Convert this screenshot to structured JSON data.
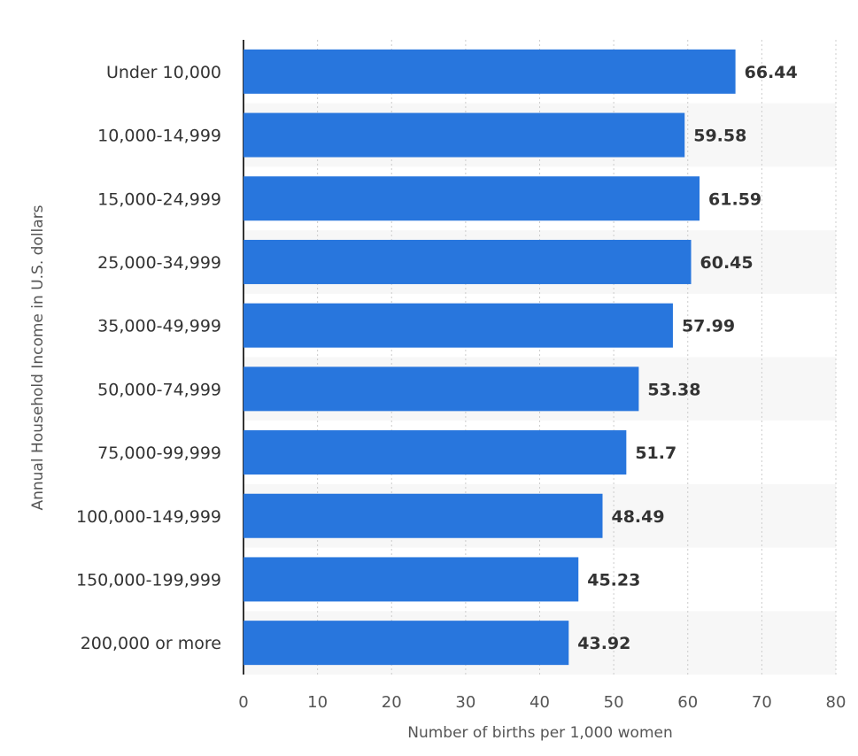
{
  "chart_data": {
    "type": "bar",
    "orientation": "horizontal",
    "title": "",
    "xlabel": "Number of births per 1,000 women",
    "ylabel": "Annual Household Income in U.S. dollars",
    "categories": [
      "Under 10,000",
      "10,000-14,999",
      "15,000-24,999",
      "25,000-34,999",
      "35,000-49,999",
      "50,000-74,999",
      "75,000-99,999",
      "100,000-149,999",
      "150,000-199,999",
      "200,000 or more"
    ],
    "values": [
      66.44,
      59.58,
      61.59,
      60.45,
      57.99,
      53.38,
      51.7,
      48.49,
      45.23,
      43.92
    ],
    "value_labels": [
      "66.44",
      "59.58",
      "61.59",
      "60.45",
      "57.99",
      "53.38",
      "51.7",
      "48.49",
      "45.23",
      "43.92"
    ],
    "xlim": [
      0,
      80
    ],
    "xticks": [
      "0",
      "10",
      "20",
      "30",
      "40",
      "50",
      "60",
      "70",
      "80"
    ],
    "grid": true,
    "legend": "none",
    "colors": {
      "bar": "#2876dd",
      "band": "#f7f7f7",
      "grid": "#cccccc",
      "axis": "#333333"
    }
  }
}
